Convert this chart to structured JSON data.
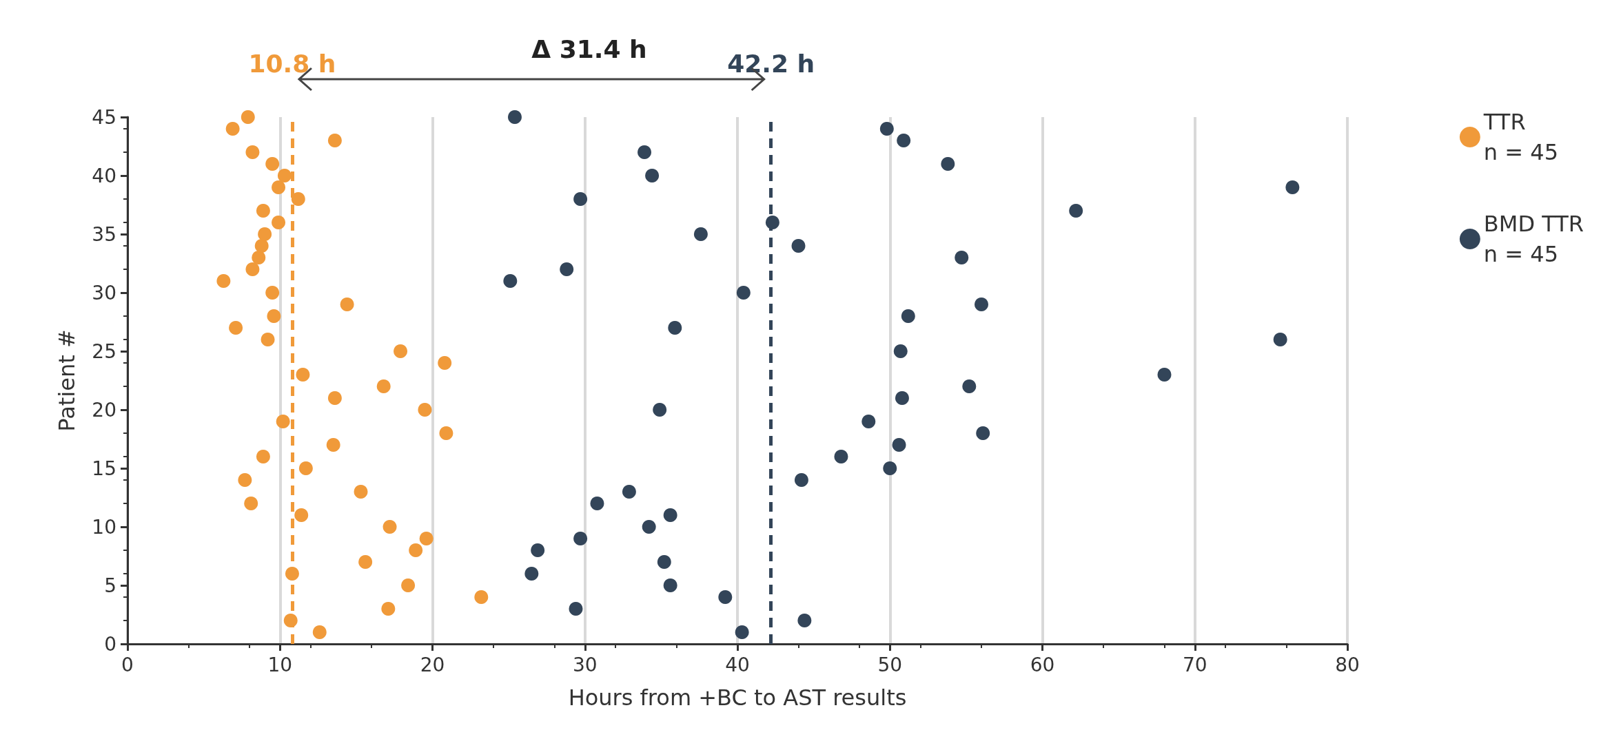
{
  "chart_data": {
    "type": "scatter",
    "xlabel": "Hours from +BC to AST results",
    "ylabel": "Patient #",
    "xlim": [
      0,
      80
    ],
    "xticks": [
      0,
      10,
      20,
      30,
      40,
      50,
      60,
      70,
      80
    ],
    "ylim": [
      0,
      45
    ],
    "yticks": [
      0,
      5,
      10,
      15,
      20,
      25,
      30,
      35,
      40,
      45
    ],
    "grid": "x",
    "legend": "top right",
    "marker": "circle",
    "series": [
      {
        "name": "TTR\nn = 45",
        "color": "#f09a3a",
        "x": [
          12.6,
          10.7,
          17.1,
          23.2,
          18.4,
          10.8,
          15.6,
          18.9,
          19.6,
          17.2,
          11.4,
          8.1,
          15.3,
          7.7,
          11.7,
          8.9,
          13.5,
          20.9,
          10.2,
          19.5,
          13.6,
          16.8,
          11.5,
          20.8,
          17.9,
          9.2,
          7.1,
          9.6,
          14.4,
          9.5,
          6.3,
          8.2,
          8.6,
          8.8,
          9.0,
          9.9,
          8.9,
          11.2,
          9.9,
          10.3,
          9.5,
          8.2,
          13.6,
          6.9,
          7.9
        ],
        "values": [
          1,
          2,
          3,
          4,
          5,
          6,
          7,
          8,
          9,
          10,
          11,
          12,
          13,
          14,
          15,
          16,
          17,
          18,
          19,
          20,
          21,
          22,
          23,
          24,
          25,
          26,
          27,
          28,
          29,
          30,
          31,
          32,
          33,
          34,
          35,
          36,
          37,
          38,
          39,
          40,
          41,
          42,
          43,
          44,
          45
        ]
      },
      {
        "name": "BMD TTR\nn = 45",
        "color": "#334559",
        "x": [
          40.3,
          44.4,
          29.4,
          39.2,
          35.6,
          26.5,
          35.2,
          26.9,
          29.7,
          34.2,
          35.6,
          30.8,
          32.9,
          44.2,
          50.0,
          46.8,
          50.6,
          56.1,
          48.6,
          34.9,
          50.8,
          55.2,
          68.0,
          50.7,
          75.6,
          35.9,
          51.2,
          56.0,
          40.4,
          25.1,
          28.8,
          54.7,
          44.0,
          37.6,
          42.3,
          62.2,
          29.7,
          76.4,
          34.4,
          53.8,
          33.9,
          50.9,
          49.8,
          25.4
        ],
        "values": [
          1,
          2,
          3,
          4,
          5,
          6,
          7,
          8,
          9,
          10,
          11,
          12,
          13,
          14,
          15,
          16,
          17,
          18,
          19,
          20,
          21,
          22,
          23,
          25,
          26,
          27,
          28,
          29,
          30,
          31,
          32,
          33,
          34,
          35,
          36,
          37,
          38,
          39,
          40,
          41,
          42,
          43,
          44,
          45
        ]
      }
    ],
    "ref_lines": [
      {
        "axis": "x",
        "value": 10.8,
        "label": "10.8 h",
        "color": "#f09a3a",
        "line_style": "dashed"
      },
      {
        "axis": "x",
        "value": 42.2,
        "label": "42.2 h",
        "color": "#334559",
        "line_style": "dashed"
      }
    ],
    "annotations": [
      "Δ 31.4 h"
    ]
  }
}
